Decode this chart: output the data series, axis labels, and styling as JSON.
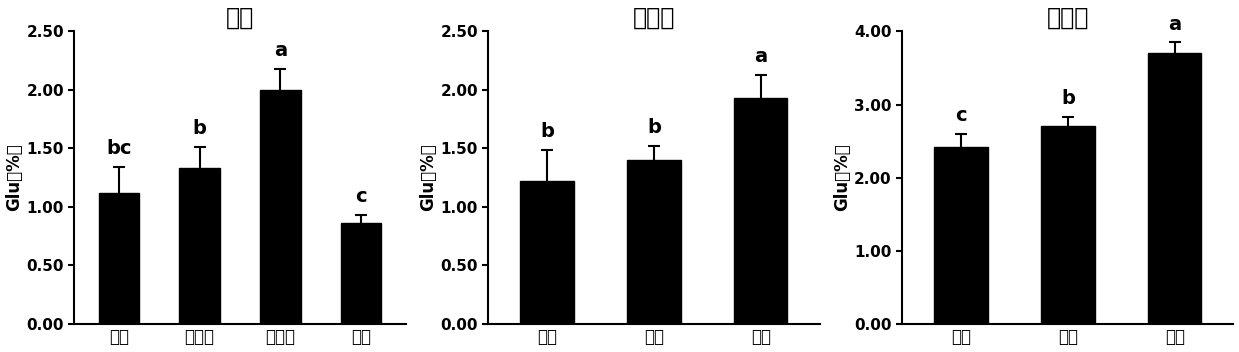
{
  "charts": [
    {
      "title": "幼苗",
      "categories": [
        "顶叶",
        "倒二叶",
        "倒三叶",
        "茎段"
      ],
      "values": [
        1.12,
        1.33,
        2.0,
        0.86
      ],
      "errors": [
        0.22,
        0.18,
        0.18,
        0.07
      ],
      "letters": [
        "bc",
        "b",
        "a",
        "c"
      ],
      "ylim": [
        0,
        2.5
      ],
      "yticks": [
        0.0,
        0.5,
        1.0,
        1.5,
        2.0,
        2.5
      ],
      "ylabel": "Glu（%）"
    },
    {
      "title": "倒二叶",
      "categories": [
        "基部",
        "中部",
        "顶部"
      ],
      "values": [
        1.22,
        1.4,
        1.93
      ],
      "errors": [
        0.27,
        0.12,
        0.2
      ],
      "letters": [
        "b",
        "b",
        "a"
      ],
      "ylim": [
        0,
        2.5
      ],
      "yticks": [
        0.0,
        0.5,
        1.0,
        1.5,
        2.0,
        2.5
      ],
      "ylabel": "Glu（%）"
    },
    {
      "title": "倒三叶",
      "categories": [
        "基部",
        "中部",
        "顶部"
      ],
      "values": [
        2.42,
        2.7,
        3.7
      ],
      "errors": [
        0.18,
        0.13,
        0.15
      ],
      "letters": [
        "c",
        "b",
        "a"
      ],
      "ylim": [
        0,
        4.0
      ],
      "yticks": [
        0.0,
        1.0,
        2.0,
        3.0,
        4.0
      ],
      "ylabel": "Glu（%）"
    }
  ],
  "bar_color": "#000000",
  "bar_edgecolor": "#000000",
  "background_color": "#ffffff",
  "title_fontsize": 17,
  "label_fontsize": 12,
  "tick_fontsize": 11,
  "letter_fontsize": 14,
  "ylabel_fontsize": 12
}
